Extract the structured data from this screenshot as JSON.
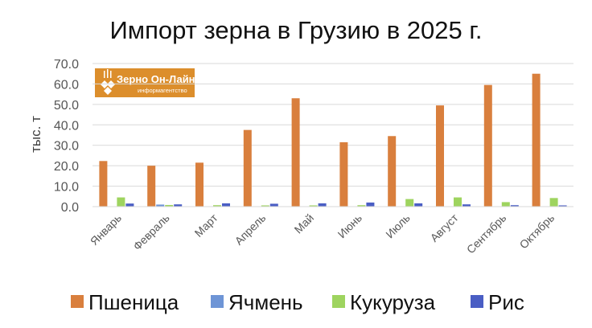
{
  "chart_data": {
    "type": "bar",
    "title": "Импорт зерна в Грузию в 2025 г.",
    "ylabel": "тыс. т",
    "xlabel": "",
    "ylim": [
      0,
      70
    ],
    "yticks": [
      "0.0",
      "10.0",
      "20.0",
      "30.0",
      "40.0",
      "50.0",
      "60.0",
      "70.0"
    ],
    "grid": true,
    "legend_position": "bottom",
    "categories": [
      "Январь",
      "Февраль",
      "Март",
      "Апрель",
      "Май",
      "Июнь",
      "Июль",
      "Август",
      "Сентябрь",
      "Октябрь"
    ],
    "series": [
      {
        "name": "Пшеница",
        "color": "#D97F3D",
        "values": [
          22.3,
          20.0,
          21.5,
          37.5,
          53.0,
          31.5,
          34.5,
          49.5,
          59.5,
          65.0
        ]
      },
      {
        "name": "Ячмень",
        "color": "#6E95D6",
        "values": [
          0.1,
          1.0,
          0.1,
          0.1,
          0.1,
          0.1,
          0.1,
          0.1,
          0.1,
          0.1
        ]
      },
      {
        "name": "Кукуруза",
        "color": "#9ED45F",
        "values": [
          4.5,
          0.8,
          0.7,
          0.6,
          0.6,
          0.7,
          3.7,
          4.5,
          2.2,
          4.2
        ]
      },
      {
        "name": "Рис",
        "color": "#4A5EC4",
        "values": [
          1.5,
          1.1,
          1.6,
          1.4,
          1.6,
          2.0,
          1.6,
          1.1,
          0.7,
          0.6
        ]
      }
    ]
  },
  "logo": {
    "main_text": "Зерно Он-Лайн",
    "sub_text": "информагентство",
    "color": "#DC8E2C"
  }
}
